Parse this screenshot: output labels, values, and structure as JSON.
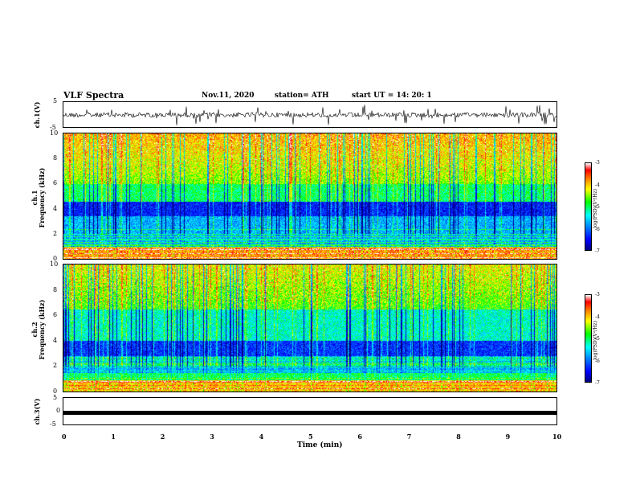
{
  "header": {
    "title": "VLF Spectra",
    "date": "Nov.11, 2020",
    "station": "station= ATH",
    "start": "start  UT =   14: 20: 1"
  },
  "panels": {
    "ch1_wave_label": "ch.1(V)",
    "ch1_spec_label_1": "ch.1",
    "ch1_spec_label_2": "Frequency  (kHz)",
    "ch2_spec_label_1": "ch.2",
    "ch2_spec_label_2": "Frequency  (kHz)",
    "ch3_wave_label": "ch.3(V)"
  },
  "colorbar": {
    "label": "log(PSD)(V²/Hz)",
    "ticks": [
      "-3",
      "-4",
      "-5",
      "-6",
      "-7"
    ]
  },
  "chart_data": [
    {
      "type": "line",
      "name": "ch1-waveform",
      "ylabel": "ch.1(V)",
      "ylim": [
        -5,
        5
      ],
      "yticks": [
        "5",
        "-5"
      ],
      "xlim": [
        0,
        10
      ]
    },
    {
      "type": "heatmap",
      "name": "ch1-spectrogram",
      "ylabel": "Frequency (kHz)",
      "ylim": [
        0,
        10
      ],
      "yticks": [
        "10",
        "8",
        "6",
        "4",
        "2",
        "0"
      ],
      "xlim": [
        0,
        10
      ],
      "clim": [
        -7,
        -3
      ]
    },
    {
      "type": "heatmap",
      "name": "ch2-spectrogram",
      "ylabel": "Frequency (kHz)",
      "ylim": [
        0,
        10
      ],
      "yticks": [
        "10",
        "8",
        "6",
        "4",
        "2",
        "0"
      ],
      "xlim": [
        0,
        10
      ],
      "clim": [
        -7,
        -3
      ]
    },
    {
      "type": "line",
      "name": "ch3-waveform",
      "ylabel": "ch.3(V)",
      "ylim": [
        -5,
        5
      ],
      "yticks": [
        "5",
        "0",
        "-5"
      ],
      "xlim": [
        0,
        10
      ],
      "values_constant": -1
    }
  ],
  "xaxis": {
    "label": "Time  (min)",
    "ticks": [
      "0",
      "1",
      "2",
      "3",
      "4",
      "5",
      "6",
      "7",
      "8",
      "9",
      "10"
    ]
  }
}
